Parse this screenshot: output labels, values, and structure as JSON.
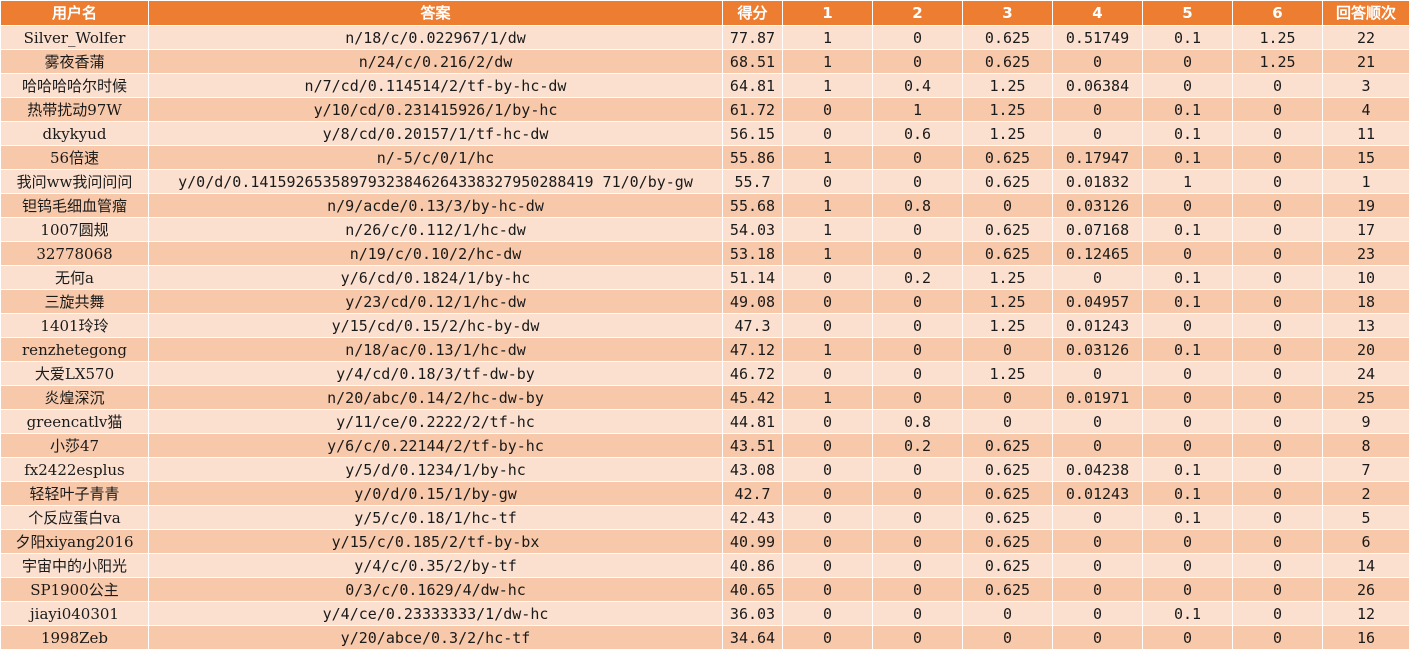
{
  "sheet": {
    "headers": [
      "用户名",
      "答案",
      "得分",
      "1",
      "2",
      "3",
      "4",
      "5",
      "6",
      "回答顺次"
    ],
    "colors": {
      "header_bg": "#ed7d31",
      "row_light": "#fbe0d0",
      "row_dark": "#f7c8a9",
      "header_text": "#ffffff"
    },
    "rows": [
      [
        "Silver_Wolfer",
        "n/18/c/0.022967/1/dw",
        "77.87",
        "1",
        "0",
        "0.625",
        "0.51749",
        "0.1",
        "1.25",
        "22"
      ],
      [
        "雾夜香蒲",
        "n/24/c/0.216/2/dw",
        "68.51",
        "1",
        "0",
        "0.625",
        "0",
        "0",
        "1.25",
        "21"
      ],
      [
        "哈哈哈哈尔时候",
        "n/7/cd/0.114514/2/tf-by-hc-dw",
        "64.81",
        "1",
        "0.4",
        "1.25",
        "0.06384",
        "0",
        "0",
        "3"
      ],
      [
        "热带扰动97W",
        "y/10/cd/0.231415926/1/by-hc",
        "61.72",
        "0",
        "1",
        "1.25",
        "0",
        "0.1",
        "0",
        "4"
      ],
      [
        "dkykyud",
        "y/8/cd/0.20157/1/tf-hc-dw",
        "56.15",
        "0",
        "0.6",
        "1.25",
        "0",
        "0.1",
        "0",
        "11"
      ],
      [
        "56倍速",
        "n/-5/c/0/1/hc",
        "55.86",
        "1",
        "0",
        "0.625",
        "0.17947",
        "0.1",
        "0",
        "15"
      ],
      [
        "我问ww我问问问",
        "y/0/d/0.14159265358979323846264338327950288419 71/0/by-gw",
        "55.7",
        "0",
        "0",
        "0.625",
        "0.01832",
        "1",
        "0",
        "1"
      ],
      [
        "钽钨毛细血管瘤",
        "n/9/acde/0.13/3/by-hc-dw",
        "55.68",
        "1",
        "0.8",
        "0",
        "0.03126",
        "0",
        "0",
        "19"
      ],
      [
        "1007圆规",
        "n/26/c/0.112/1/hc-dw",
        "54.03",
        "1",
        "0",
        "0.625",
        "0.07168",
        "0.1",
        "0",
        "17"
      ],
      [
        "32778068",
        "n/19/c/0.10/2/hc-dw",
        "53.18",
        "1",
        "0",
        "0.625",
        "0.12465",
        "0",
        "0",
        "23"
      ],
      [
        "无何a",
        "y/6/cd/0.1824/1/by-hc",
        "51.14",
        "0",
        "0.2",
        "1.25",
        "0",
        "0.1",
        "0",
        "10"
      ],
      [
        "三旋共舞",
        "y/23/cd/0.12/1/hc-dw",
        "49.08",
        "0",
        "0",
        "1.25",
        "0.04957",
        "0.1",
        "0",
        "18"
      ],
      [
        "1401玲玲",
        "y/15/cd/0.15/2/hc-by-dw",
        "47.3",
        "0",
        "0",
        "1.25",
        "0.01243",
        "0",
        "0",
        "13"
      ],
      [
        "renzhetegong",
        "n/18/ac/0.13/1/hc-dw",
        "47.12",
        "1",
        "0",
        "0",
        "0.03126",
        "0.1",
        "0",
        "20"
      ],
      [
        "大爱LX570",
        "y/4/cd/0.18/3/tf-dw-by",
        "46.72",
        "0",
        "0",
        "1.25",
        "0",
        "0",
        "0",
        "24"
      ],
      [
        "炎煌深沉",
        "n/20/abc/0.14/2/hc-dw-by",
        "45.42",
        "1",
        "0",
        "0",
        "0.01971",
        "0",
        "0",
        "25"
      ],
      [
        "greencatlv猫",
        "y/11/ce/0.2222/2/tf-hc",
        "44.81",
        "0",
        "0.8",
        "0",
        "0",
        "0",
        "0",
        "9"
      ],
      [
        "小莎47",
        "y/6/c/0.22144/2/tf-by-hc",
        "43.51",
        "0",
        "0.2",
        "0.625",
        "0",
        "0",
        "0",
        "8"
      ],
      [
        "fx2422esplus",
        "y/5/d/0.1234/1/by-hc",
        "43.08",
        "0",
        "0",
        "0.625",
        "0.04238",
        "0.1",
        "0",
        "7"
      ],
      [
        "轻轻叶子青青",
        "y/0/d/0.15/1/by-gw",
        "42.7",
        "0",
        "0",
        "0.625",
        "0.01243",
        "0.1",
        "0",
        "2"
      ],
      [
        "个反应蛋白va",
        "y/5/c/0.18/1/hc-tf",
        "42.43",
        "0",
        "0",
        "0.625",
        "0",
        "0.1",
        "0",
        "5"
      ],
      [
        "夕阳xiyang2016",
        "y/15/c/0.185/2/tf-by-bx",
        "40.99",
        "0",
        "0",
        "0.625",
        "0",
        "0",
        "0",
        "6"
      ],
      [
        "宇宙中的小阳光",
        "y/4/c/0.35/2/by-tf",
        "40.86",
        "0",
        "0",
        "0.625",
        "0",
        "0",
        "0",
        "14"
      ],
      [
        "SP1900公主",
        "0/3/c/0.1629/4/dw-hc",
        "40.65",
        "0",
        "0",
        "0.625",
        "0",
        "0",
        "0",
        "26"
      ],
      [
        "jiayi040301",
        "y/4/ce/0.23333333/1/dw-hc",
        "36.03",
        "0",
        "0",
        "0",
        "0",
        "0.1",
        "0",
        "12"
      ],
      [
        "1998Zeb",
        "y/20/abce/0.3/2/hc-tf",
        "34.64",
        "0",
        "0",
        "0",
        "0",
        "0",
        "0",
        "16"
      ]
    ]
  }
}
